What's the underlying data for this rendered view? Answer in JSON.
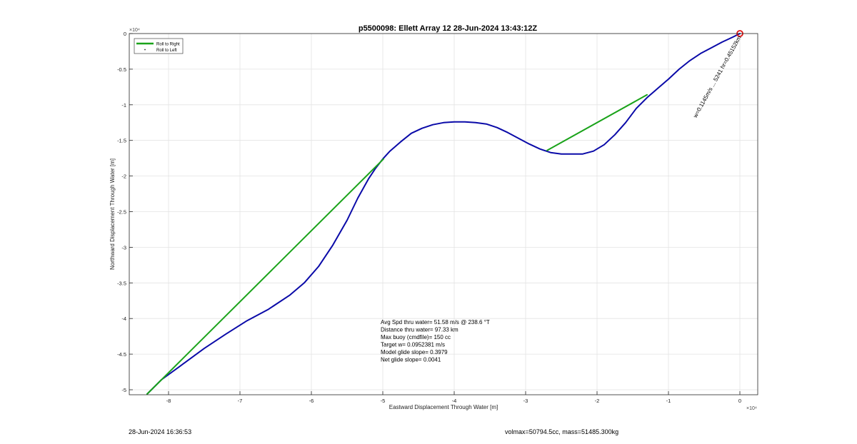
{
  "chart_data": {
    "type": "line",
    "title": "p5500098: Ellett Array 12 28-Jun-2024 13:43:12Z",
    "xlabel": "Eastward Displacement Through Water [m]",
    "ylabel": "Northward Displacement Through Water [m]",
    "x_multiplier": "×10⁴",
    "y_multiplier": "×10⁴",
    "xlim": [
      -8.55,
      0.25
    ],
    "ylim": [
      -5.07,
      0
    ],
    "x_ticks": [
      -8,
      -7,
      -6,
      -5,
      -4,
      -3,
      -2,
      -1,
      0
    ],
    "y_ticks": [
      0,
      -0.5,
      -1,
      -1.5,
      -2,
      -2.5,
      -3,
      -3.5,
      -4,
      -4.5,
      -5
    ],
    "grid": true,
    "legend_position": "top-left",
    "legend": [
      {
        "label": "Roll to Right",
        "color": "#1aa31a",
        "style": "line"
      },
      {
        "label": "Roll to Left",
        "color": "#222222",
        "style": "dot"
      }
    ],
    "series": [
      {
        "name": "track",
        "color": "#0a0aa8",
        "x": [
          0,
          -0.1,
          -0.25,
          -0.4,
          -0.55,
          -0.7,
          -0.85,
          -1.0,
          -1.15,
          -1.3,
          -1.45,
          -1.6,
          -1.75,
          -1.9,
          -2.05,
          -2.2,
          -2.35,
          -2.5,
          -2.65,
          -2.8,
          -2.95,
          -3.1,
          -3.25,
          -3.4,
          -3.55,
          -3.7,
          -3.85,
          -4.0,
          -4.15,
          -4.3,
          -4.45,
          -4.6,
          -4.75,
          -4.9,
          -5.0,
          -5.1,
          -5.2,
          -5.35,
          -5.5,
          -5.7,
          -5.9,
          -6.1,
          -6.3,
          -6.6,
          -6.9,
          -7.2,
          -7.5,
          -7.8,
          -8.1,
          -8.3
        ],
        "y": [
          0,
          -0.05,
          -0.12,
          -0.2,
          -0.28,
          -0.38,
          -0.5,
          -0.64,
          -0.77,
          -0.9,
          -1.05,
          -1.25,
          -1.42,
          -1.56,
          -1.65,
          -1.69,
          -1.69,
          -1.69,
          -1.67,
          -1.62,
          -1.55,
          -1.47,
          -1.39,
          -1.32,
          -1.27,
          -1.25,
          -1.24,
          -1.24,
          -1.25,
          -1.28,
          -1.33,
          -1.4,
          -1.52,
          -1.65,
          -1.76,
          -1.89,
          -2.04,
          -2.31,
          -2.62,
          -2.97,
          -3.27,
          -3.5,
          -3.67,
          -3.87,
          -4.03,
          -4.22,
          -4.42,
          -4.64,
          -4.86,
          -5.06
        ]
      },
      {
        "name": "roll-to-right-1",
        "color": "#1aa31a",
        "x": [
          -8.3,
          -4.99
        ],
        "y": [
          -5.06,
          -1.76
        ]
      },
      {
        "name": "roll-to-right-2",
        "color": "#1aa31a",
        "x": [
          -2.7,
          -1.3
        ],
        "y": [
          -1.64,
          -0.86
        ]
      }
    ],
    "end_marker": {
      "x": 0,
      "y": 0,
      "color": "#e01010"
    },
    "annotations": [
      "Avg Spd thru water= 51.58 m/s @ 238.6 °T",
      "Distance thru water= 97.33 km",
      "Max buoy (cmdfile)= 150 cc",
      "Target w= 0.0952381 m/s",
      "Model glide slope= 0.3979",
      "Net glide slope= 0.0041"
    ],
    "rotated_label": "w=0.1145m/s ... 5241 hr=0.45152km"
  },
  "footer": {
    "timestamp": "28-Jun-2024 16:36:53",
    "stats": "volmax=50794.5cc, mass=51485.300kg"
  }
}
